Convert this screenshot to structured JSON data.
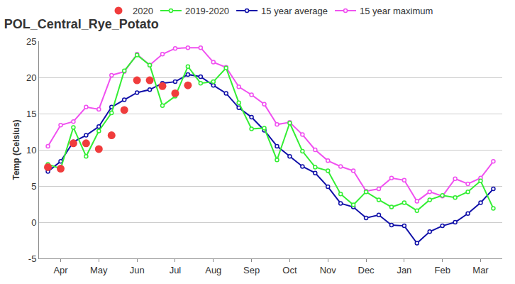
{
  "chart_data": {
    "type": "line",
    "title": "POL_Central_Rye_Potato",
    "y_label": "Temp (Celsius)",
    "categories": [
      null,
      "Apr",
      null,
      null,
      "May",
      null,
      null,
      "Jun",
      null,
      null,
      "Jul",
      null,
      null,
      "Aug",
      null,
      null,
      "Sep",
      null,
      null,
      "Oct",
      null,
      null,
      "Nov",
      null,
      null,
      "Dec",
      null,
      null,
      "Jan",
      null,
      null,
      "Feb",
      null,
      null,
      "Mar",
      null
    ],
    "ylim": [
      -5,
      25
    ],
    "yticks": [
      -5,
      0,
      5,
      10,
      15,
      20,
      25
    ],
    "grid": true,
    "legend": "top",
    "series": [
      {
        "name": "2020",
        "type": "scatter",
        "marker": "circle",
        "color": "#f03c3c",
        "values": [
          7.6,
          7.4,
          10.9,
          10.9,
          10.1,
          12.0,
          15.5,
          19.6,
          19.6,
          18.8,
          17.8,
          18.9,
          null,
          null,
          null,
          null,
          null,
          null,
          null,
          null,
          null,
          null,
          null,
          null,
          null,
          null,
          null,
          null,
          null,
          null,
          null,
          null,
          null,
          null,
          null,
          null
        ]
      },
      {
        "name": "2019-2020",
        "type": "line",
        "marker": "open-circle",
        "color": "#33ee33",
        "values": [
          8.0,
          7.4,
          13.1,
          9.1,
          12.6,
          15.1,
          20.9,
          23.1,
          21.7,
          16.1,
          17.4,
          21.5,
          19.2,
          19.4,
          21.3,
          16.5,
          12.9,
          13.0,
          8.6,
          13.7,
          9.8,
          7.6,
          7.1,
          3.9,
          2.4,
          4.2,
          3.1,
          2.1,
          2.7,
          1.6,
          3.1,
          3.7,
          3.4,
          4.2,
          5.7,
          1.9
        ]
      },
      {
        "name": "15 year average",
        "type": "line",
        "marker": "open-circle",
        "color": "#1010a8",
        "values": [
          7.0,
          8.4,
          11.1,
          12.0,
          13.2,
          15.9,
          16.9,
          17.9,
          18.3,
          19.2,
          19.4,
          20.4,
          20.1,
          18.9,
          17.8,
          15.8,
          14.5,
          12.7,
          10.5,
          9.1,
          7.7,
          6.8,
          4.9,
          2.6,
          2.1,
          0.6,
          1.0,
          -0.4,
          -0.5,
          -2.9,
          -1.3,
          -0.5,
          0.0,
          1.2,
          2.7,
          4.6
        ]
      },
      {
        "name": "15 year maximum",
        "type": "line",
        "marker": "open-circle",
        "color": "#f050f0",
        "values": [
          10.5,
          13.4,
          13.9,
          15.9,
          15.6,
          20.3,
          20.8,
          23.2,
          21.7,
          23.2,
          24.0,
          24.1,
          24.1,
          22.1,
          21.4,
          18.7,
          17.6,
          16.3,
          13.5,
          13.8,
          12.1,
          10.0,
          8.5,
          7.7,
          7.1,
          4.3,
          4.6,
          6.1,
          5.8,
          2.9,
          4.2,
          3.6,
          6.0,
          5.3,
          6.1,
          8.4
        ]
      }
    ]
  }
}
